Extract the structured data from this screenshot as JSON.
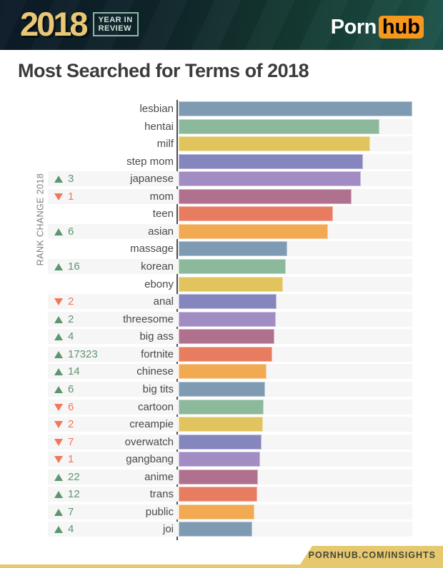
{
  "header": {
    "year": "2018",
    "year_in_review": "YEAR IN\nREVIEW",
    "brand_porn": "Porn",
    "brand_hub": "hub"
  },
  "title": "Most Searched for Terms of 2018",
  "axis_label": "RANK CHANGE 2018",
  "footer": {
    "text": "PORNHUB.COM/INSIGHTS"
  },
  "colors": {
    "up": "#5e9570",
    "down": "#f2765b",
    "track": "#f6f6f6",
    "axis": "#4f4f4f",
    "banner_gold": "#e6c96e",
    "hub_orange": "#f7971d",
    "logo_gold": "#e9c775",
    "palette": [
      "#7f9bb3",
      "#8cb89c",
      "#e2c45f",
      "#8486bd",
      "#a28cc4",
      "#b0718e",
      "#e87c61",
      "#f2aa52"
    ]
  },
  "chart_data": {
    "type": "bar",
    "orientation": "horizontal",
    "title": "Most Searched for Terms of 2018",
    "axis_note": "RANK CHANGE 2018",
    "xlim": [
      0,
      100
    ],
    "grid": false,
    "legend": null,
    "categories": [
      "lesbian",
      "hentai",
      "milf",
      "step mom",
      "japanese",
      "mom",
      "teen",
      "asian",
      "massage",
      "korean",
      "ebony",
      "anal",
      "threesome",
      "big ass",
      "fortnite",
      "chinese",
      "big tits",
      "cartoon",
      "creampie",
      "overwatch",
      "gangbang",
      "anime",
      "trans",
      "public",
      "joi"
    ],
    "values": [
      100,
      86,
      82,
      79,
      78,
      74,
      66,
      64,
      46.5,
      46,
      44.5,
      42,
      41.5,
      41,
      40,
      37.5,
      37,
      36.5,
      36,
      35.5,
      35,
      34,
      33.5,
      32.5,
      31.5
    ],
    "rank_changes": [
      null,
      null,
      null,
      null,
      "+3",
      "-1",
      null,
      "+6",
      null,
      "+16",
      null,
      "-2",
      "+2",
      "+4",
      "+17323",
      "+14",
      "+6",
      "-6",
      "-2",
      "-7",
      "-1",
      "+22",
      "+12",
      "+7",
      "+4"
    ]
  }
}
